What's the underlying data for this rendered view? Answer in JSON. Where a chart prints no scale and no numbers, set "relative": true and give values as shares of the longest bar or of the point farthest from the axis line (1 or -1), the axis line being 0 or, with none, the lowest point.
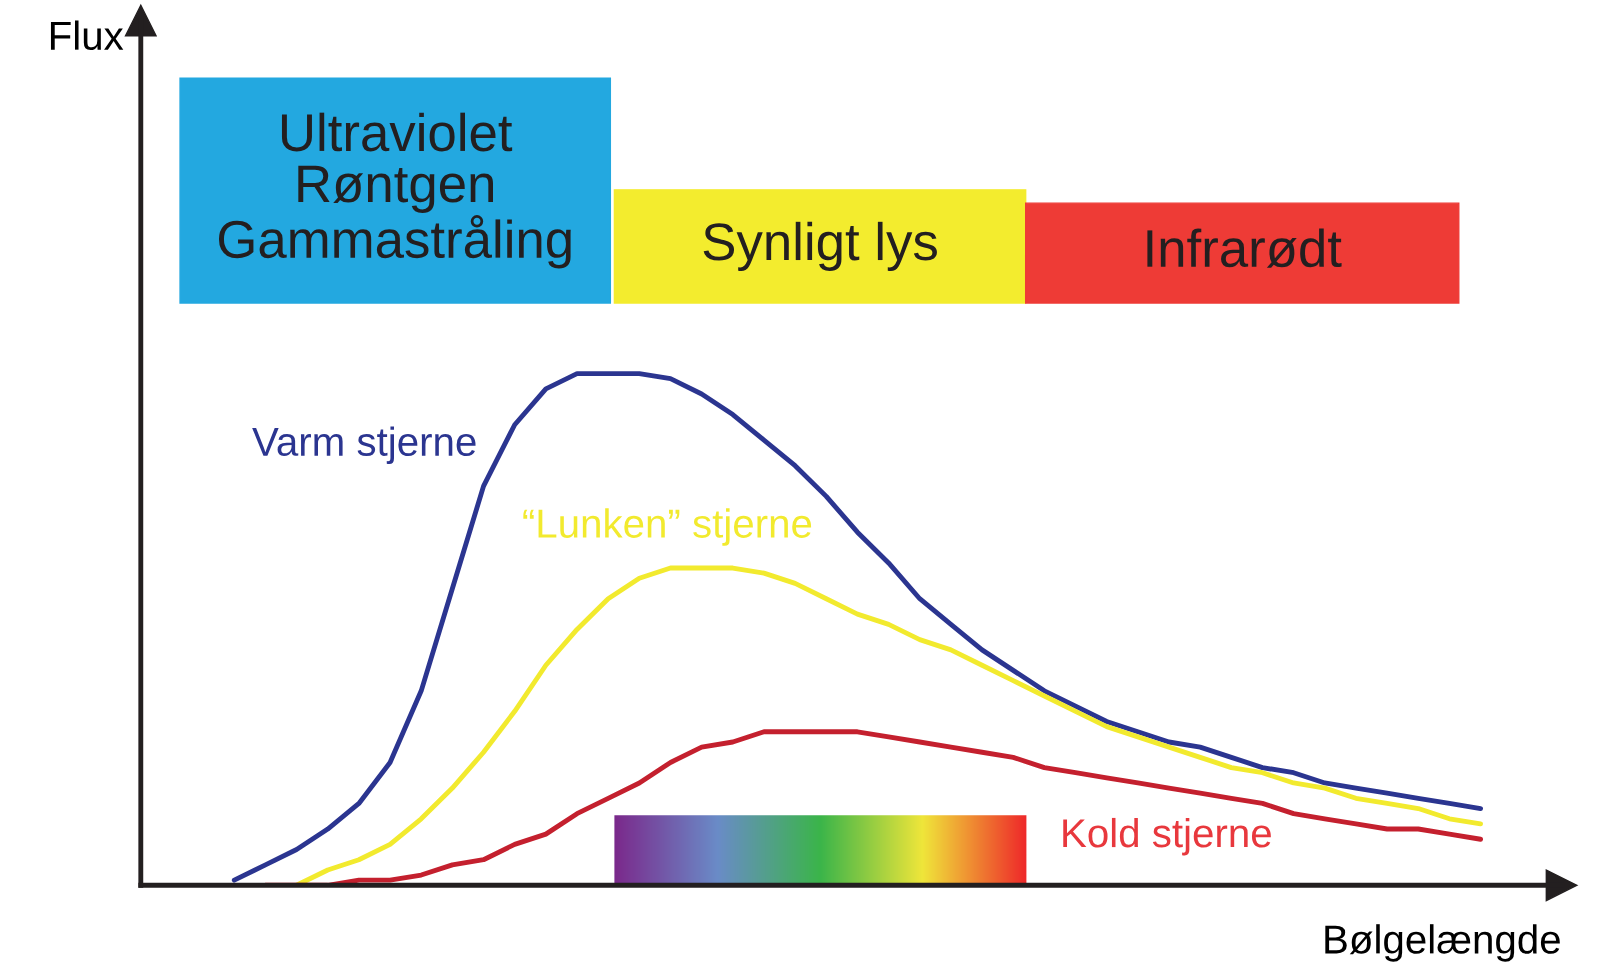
{
  "chart_data": {
    "type": "line",
    "relative": true,
    "xlabel": "Bølgelængde",
    "tick_labels": false,
    "grid": false,
    "legend": false,
    "marker": "none",
    "line_style": "solid",
    "categories": [
      null,
      null,
      null,
      null,
      null,
      null,
      null,
      null,
      null,
      null,
      null,
      null,
      null,
      null,
      null,
      null,
      null,
      null,
      null,
      null,
      null,
      null,
      null,
      null,
      null,
      null,
      null,
      null,
      null,
      null,
      null,
      null,
      null,
      null,
      null,
      null,
      null,
      null,
      null,
      null,
      null
    ],
    "annotations": [
      "Ultraviolet\nRøntgen\nGammastråling",
      "Synligt lys",
      "Infrarødt",
      "Flux"
    ],
    "series": [
      {
        "name": "Varm stjerne",
        "color": "#2b3590",
        "values": [
          0.01,
          0.04,
          0.07,
          0.11,
          0.16,
          0.24,
          0.38,
          0.58,
          0.78,
          0.9,
          0.97,
          1.0,
          1.0,
          1.0,
          0.99,
          0.96,
          0.92,
          0.87,
          0.82,
          0.76,
          0.69,
          0.63,
          0.56,
          0.51,
          0.46,
          0.42,
          0.38,
          0.35,
          0.32,
          0.3,
          0.28,
          0.27,
          0.25,
          0.23,
          0.22,
          0.2,
          0.19,
          0.18,
          0.17,
          0.16,
          0.15
        ]
      },
      {
        "name": "“Lunken” stjerne",
        "color": "#f2ea2e",
        "values": [
          null,
          null,
          0.0,
          0.03,
          0.05,
          0.08,
          0.13,
          0.19,
          0.26,
          0.34,
          0.43,
          0.5,
          0.56,
          0.6,
          0.62,
          0.62,
          0.62,
          0.61,
          0.59,
          0.56,
          0.53,
          0.51,
          0.48,
          0.46,
          0.43,
          0.4,
          0.37,
          0.34,
          0.31,
          0.29,
          0.27,
          0.25,
          0.23,
          0.22,
          0.2,
          0.19,
          0.17,
          0.16,
          0.15,
          0.13,
          0.12
        ]
      },
      {
        "name": "Kold stjerne",
        "color": "#c4202e",
        "values": [
          null,
          0.0,
          0.0,
          0.0,
          0.01,
          0.01,
          0.02,
          0.04,
          0.05,
          0.08,
          0.1,
          0.14,
          0.17,
          0.2,
          0.24,
          0.27,
          0.28,
          0.3,
          0.3,
          0.3,
          0.3,
          0.29,
          0.28,
          0.27,
          0.26,
          0.25,
          0.23,
          0.22,
          0.21,
          0.2,
          0.19,
          0.18,
          0.17,
          0.16,
          0.14,
          0.13,
          0.12,
          0.11,
          0.11,
          0.1,
          0.09
        ]
      }
    ]
  }
}
